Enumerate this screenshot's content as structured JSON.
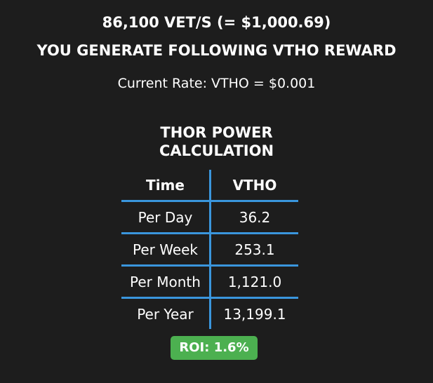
{
  "header": {
    "line1": "86,100 VET/S (= $1,000.69)",
    "line2": "YOU GENERATE FOLLOWING VTHO REWARD",
    "rate": "Current Rate: VTHO = $0.001"
  },
  "calculation": {
    "title": "THOR POWER CALCULATION",
    "table": {
      "columns": [
        "Time",
        "VTHO"
      ],
      "rows": [
        [
          "Per Day",
          "36.2"
        ],
        [
          "Per Week",
          "253.1"
        ],
        [
          "Per Month",
          "1,121.0"
        ],
        [
          "Per Year",
          "13,199.1"
        ]
      ]
    }
  },
  "roi": "ROI: 1.6%"
}
